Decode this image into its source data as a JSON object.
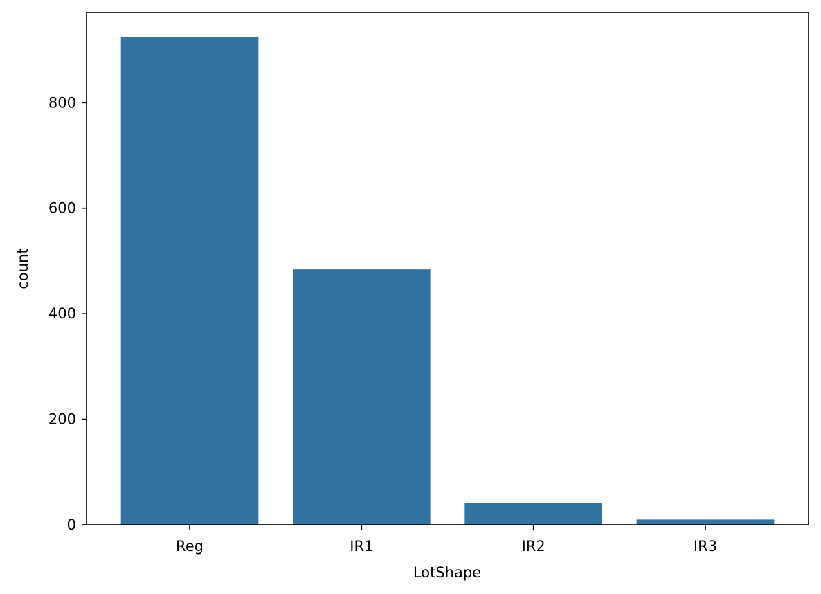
{
  "chart_data": {
    "type": "bar",
    "categories": [
      "Reg",
      "IR1",
      "IR2",
      "IR3"
    ],
    "values": [
      925,
      484,
      41,
      10
    ],
    "title": "",
    "xlabel": "LotShape",
    "ylabel": "count",
    "ylim": [
      0,
      971
    ],
    "yticks": [
      0,
      200,
      400,
      600,
      800
    ],
    "grid": false,
    "legend": "none",
    "bar_color": "#3274a1"
  }
}
